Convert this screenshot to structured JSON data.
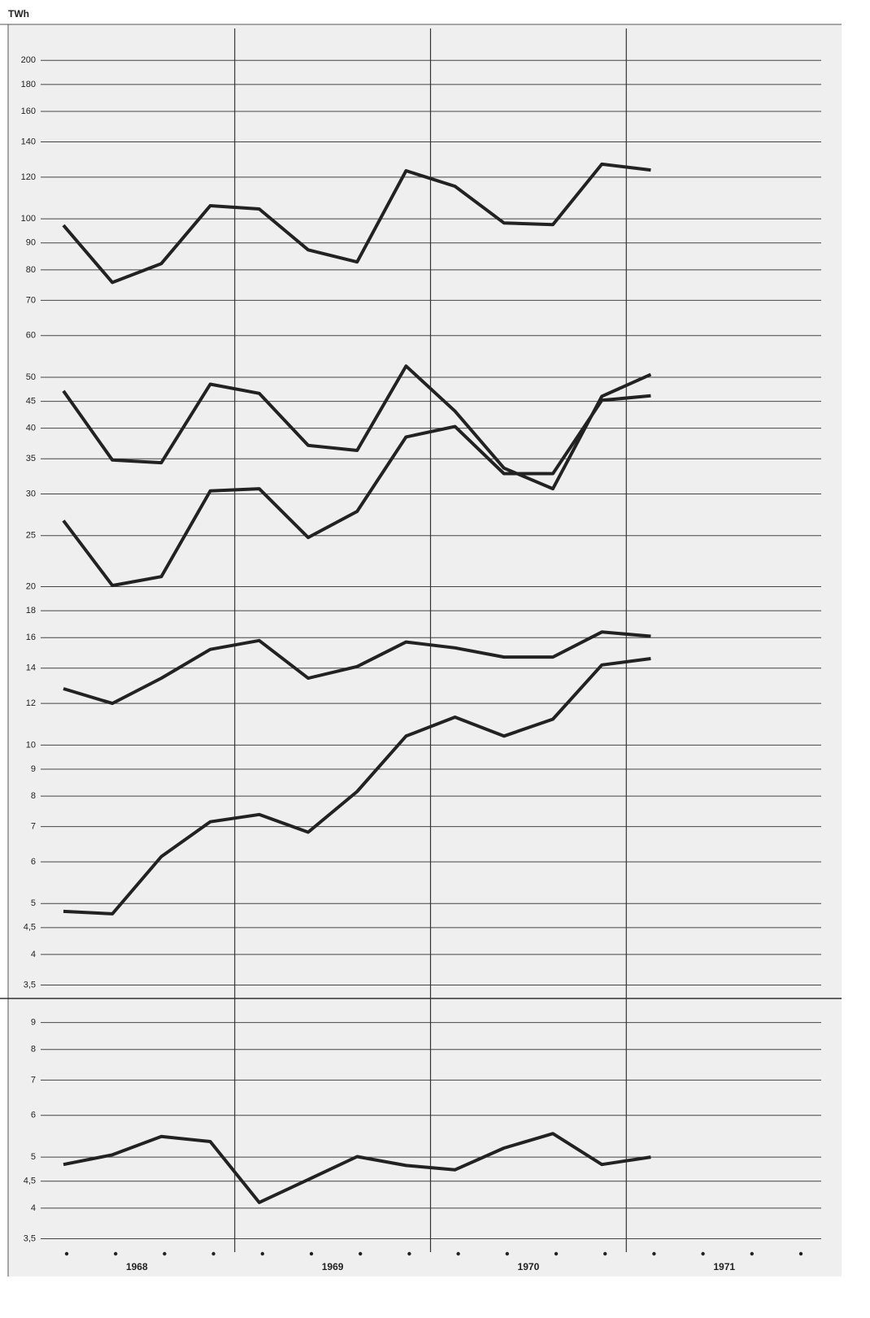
{
  "chart_data": [
    {
      "type": "line",
      "y_label": "TWh",
      "log_scale": true,
      "grid": true,
      "categories": [
        null,
        null,
        null,
        null,
        null,
        null,
        null,
        null,
        null,
        null,
        null,
        null,
        null,
        null,
        null,
        null
      ],
      "ylim": [
        3.3,
        230
      ],
      "yticks": [
        {
          "value": 3.5,
          "label": "3,5"
        },
        4,
        {
          "value": 4.5,
          "label": "4,5"
        },
        5,
        6,
        7,
        8,
        9,
        10,
        12,
        14,
        16,
        18,
        20,
        25,
        30,
        35,
        40,
        45,
        50,
        60,
        70,
        80,
        90,
        100,
        120,
        140,
        160,
        180,
        200
      ],
      "series": [
        {
          "color": "#222222",
          "values": [
            97.2,
            75.7,
            82.2,
            105.9,
            104.4,
            87.3,
            82.8,
            123.4,
            115.3,
            98.2,
            97.5,
            127,
            123.8,
            null,
            null,
            null
          ]
        },
        {
          "color": "#222222",
          "values": [
            47.1,
            34.8,
            34.4,
            48.5,
            46.6,
            37.1,
            36.3,
            52.5,
            43.1,
            33.6,
            30.7,
            46.0,
            50.6,
            null,
            null,
            null
          ]
        },
        {
          "color": "#222222",
          "values": [
            26.7,
            20.1,
            20.9,
            30.4,
            30.7,
            24.8,
            27.8,
            38.5,
            40.3,
            32.8,
            32.8,
            45.2,
            46.1,
            null,
            null,
            null
          ]
        },
        {
          "color": "#222222",
          "values": [
            12.8,
            12.0,
            13.4,
            15.2,
            15.8,
            13.4,
            14.1,
            15.7,
            15.3,
            14.7,
            14.7,
            16.4,
            16.1,
            null,
            null,
            null
          ]
        },
        {
          "color": "#222222",
          "values": [
            4.83,
            4.78,
            6.14,
            7.15,
            7.38,
            6.83,
            8.16,
            10.4,
            11.3,
            10.4,
            11.2,
            14.2,
            14.6,
            null,
            null,
            null
          ]
        }
      ]
    },
    {
      "type": "line",
      "log_scale": true,
      "grid": true,
      "categories": [
        null,
        null,
        null,
        null,
        null,
        null,
        null,
        null,
        null,
        null,
        null,
        null,
        null,
        null,
        null,
        null
      ],
      "year_labels": [
        "1968",
        "1969",
        "1970",
        "1971"
      ],
      "ylim": [
        3.3,
        10
      ],
      "yticks": [
        {
          "value": 3.5,
          "label": "3,5"
        },
        4,
        {
          "value": 4.5,
          "label": "4,5"
        },
        5,
        6,
        7,
        8,
        9
      ],
      "series": [
        {
          "color": "#222222",
          "values": [
            4.84,
            5.05,
            5.47,
            5.35,
            4.1,
            4.53,
            5.01,
            4.82,
            4.73,
            5.2,
            5.54,
            4.84,
            5.0,
            null,
            null,
            null
          ]
        }
      ]
    }
  ]
}
